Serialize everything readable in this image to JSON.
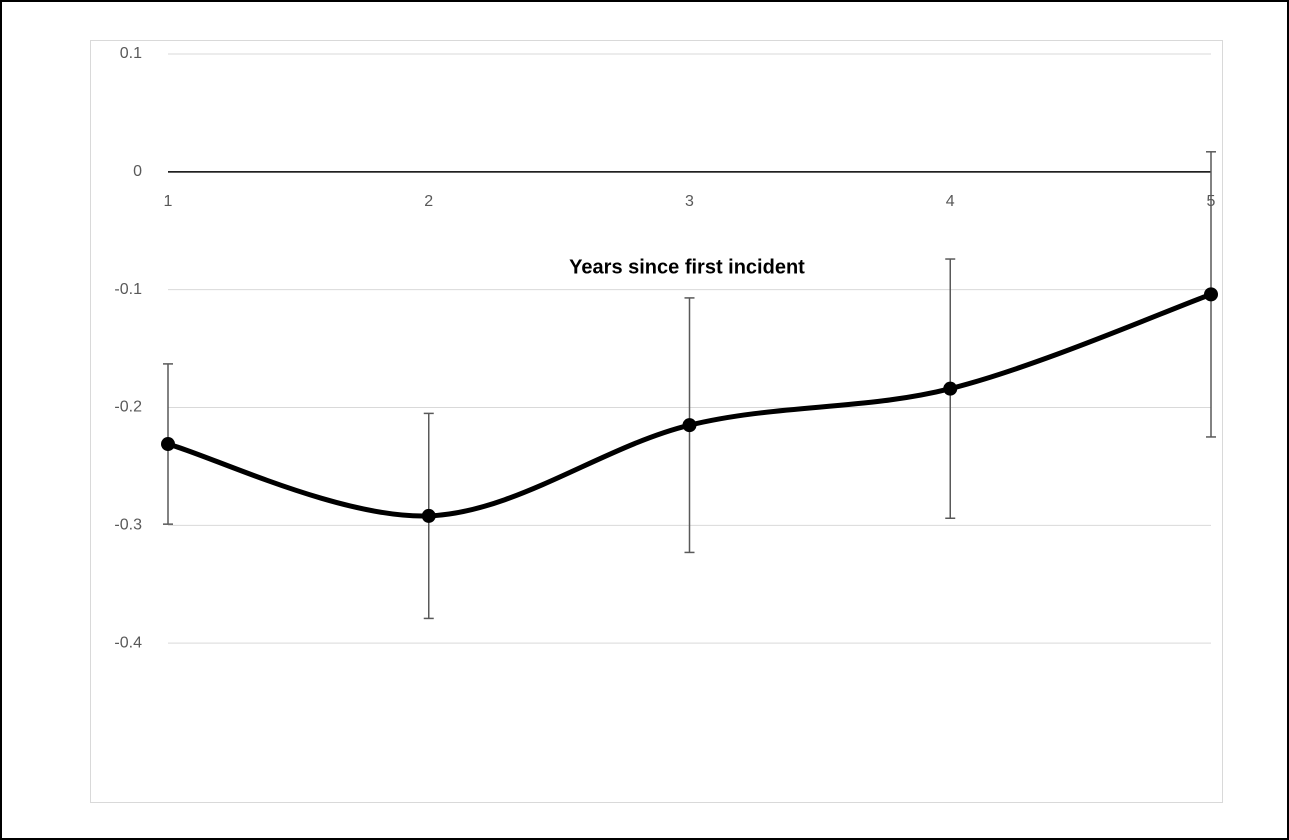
{
  "chart_data": {
    "type": "line",
    "x_label": "Years since first incident",
    "categories": [
      "1",
      "2",
      "3",
      "4",
      "5"
    ],
    "values": [
      -0.231,
      -0.292,
      -0.215,
      -0.184,
      -0.104
    ],
    "errors": [
      0.068,
      0.087,
      0.108,
      0.11,
      0.121
    ],
    "color": "#000000",
    "smooth": true,
    "ylim": [
      -0.5,
      0.1
    ],
    "yticks": [
      0.1,
      0,
      -0.1,
      -0.2,
      -0.3,
      -0.4
    ],
    "grid": true
  }
}
